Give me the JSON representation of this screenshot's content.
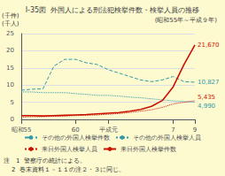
{
  "chart_data": {
    "type": "line",
    "title": "I-35図  外国人による刑法犯検挙件数・検挙人員の推移",
    "subtitle": "(昭和55年～平成９年)",
    "ylabel": "(千件)\n(千人)",
    "categories": [
      "昭和55",
      null,
      null,
      null,
      null,
      "60",
      null,
      null,
      "平成元",
      null,
      null,
      null,
      null,
      null,
      "7",
      null,
      "9"
    ],
    "series": [
      {
        "name": "その他の外国人検挙件数",
        "color": "#3399aa",
        "line_style": "dashed",
        "values": [
          8.5,
          8.8,
          8.9,
          15.5,
          17.5,
          17.5,
          16.5,
          16.0,
          14.5,
          13.5,
          12.5,
          11.5,
          11.0,
          11.5,
          12.5,
          11.0,
          10.827
        ],
        "value_labels": [
          null,
          null,
          null,
          null,
          null,
          null,
          null,
          null,
          null,
          null,
          null,
          null,
          null,
          null,
          null,
          null,
          "10,827"
        ]
      },
      {
        "name": "その他の外国人検挙人員",
        "color": "#3399aa",
        "line_style": "dotted",
        "values": [
          8.0,
          8.0,
          7.8,
          7.8,
          7.8,
          7.5,
          7.3,
          7.0,
          7.0,
          6.8,
          6.5,
          6.3,
          6.0,
          5.7,
          5.4,
          5.2,
          4.99
        ],
        "value_labels": [
          null,
          null,
          null,
          null,
          null,
          null,
          null,
          null,
          null,
          null,
          null,
          null,
          null,
          null,
          null,
          null,
          "4,990"
        ]
      },
      {
        "name": "来日外国人検挙人員",
        "color": "#cc1100",
        "line_style": "dotted",
        "values": [
          0.7,
          0.8,
          0.8,
          0.9,
          1.0,
          1.1,
          1.2,
          1.3,
          1.5,
          1.7,
          2.0,
          2.4,
          2.8,
          3.5,
          4.5,
          5.0,
          5.435
        ],
        "value_labels": [
          null,
          null,
          null,
          null,
          null,
          null,
          null,
          null,
          null,
          null,
          null,
          null,
          null,
          null,
          null,
          null,
          "5,435"
        ]
      },
      {
        "name": "来日外国人検挙件数",
        "color": "#cc1100",
        "line_style": "solid",
        "values": [
          1.1,
          1.1,
          1.0,
          1.1,
          1.2,
          1.3,
          1.4,
          1.6,
          1.8,
          2.0,
          2.4,
          2.9,
          3.8,
          5.5,
          9.5,
          16.0,
          21.67
        ],
        "value_labels": [
          null,
          null,
          null,
          null,
          null,
          null,
          null,
          null,
          null,
          null,
          null,
          null,
          null,
          null,
          null,
          null,
          "21,670"
        ]
      }
    ],
    "ylim": [
      0,
      25
    ],
    "yticks": [
      0,
      5,
      10,
      15,
      20,
      25
    ],
    "grid": true,
    "legend": "bottom",
    "notes": [
      "注　1  警察庁の統計による。",
      "    2  巻末資料１－１１の注２・３に同じ。"
    ]
  }
}
